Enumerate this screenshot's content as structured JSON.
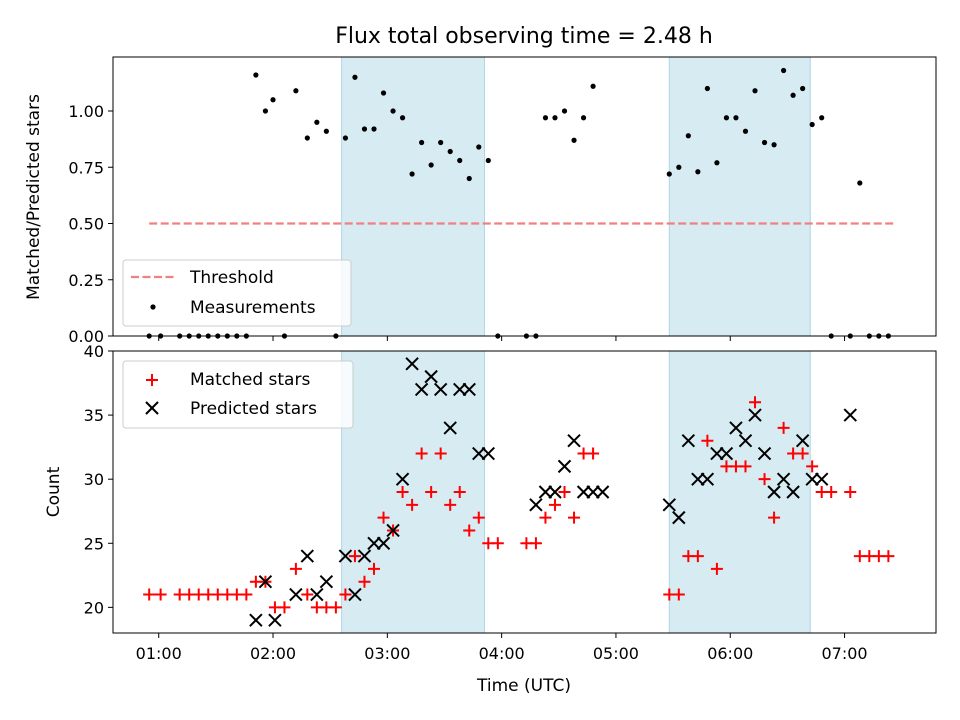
{
  "chart_data": [
    {
      "type": "scatter",
      "title": "Flux total observing time = 2.48 h",
      "ylabel": "Matched/Predicted stars",
      "xlabel": "",
      "xlim": [
        "00:36",
        "07:48"
      ],
      "ylim": [
        0,
        1.24
      ],
      "yticks": [
        0.0,
        0.25,
        0.5,
        0.75,
        1.0
      ],
      "ytick_labels": [
        "0.00",
        "0.25",
        "0.50",
        "0.75",
        "1.00"
      ],
      "grid": false,
      "legend_position": "lower-left",
      "shaded_intervals": [
        [
          "02:36",
          "03:51"
        ],
        [
          "05:28",
          "06:42"
        ]
      ],
      "threshold": {
        "name": "Threshold",
        "value": 0.5,
        "x_range": [
          "00:55",
          "07:27"
        ],
        "color": "#f28080"
      },
      "series": [
        {
          "name": "Measurements",
          "color": "#000000",
          "x": [
            "00:55",
            "01:01",
            "01:11",
            "01:16",
            "01:21",
            "01:26",
            "01:31",
            "01:36",
            "01:41",
            "01:46",
            "01:51",
            "01:56",
            "02:00",
            "02:06",
            "02:12",
            "02:18",
            "02:23",
            "02:28",
            "02:33",
            "02:38",
            "02:43",
            "02:48",
            "02:53",
            "02:58",
            "03:03",
            "03:08",
            "03:13",
            "03:18",
            "03:23",
            "03:28",
            "03:33",
            "03:38",
            "03:43",
            "03:48",
            "03:53",
            "03:58",
            "04:13",
            "04:18",
            "04:23",
            "04:28",
            "04:33",
            "04:38",
            "04:43",
            "04:48",
            "05:28",
            "05:33",
            "05:38",
            "05:43",
            "05:48",
            "05:53",
            "05:58",
            "06:03",
            "06:08",
            "06:13",
            "06:18",
            "06:23",
            "06:28",
            "06:33",
            "06:38",
            "06:43",
            "06:48",
            "06:53",
            "07:03",
            "07:08",
            "07:13",
            "07:18",
            "07:23"
          ],
          "y": [
            0,
            0,
            0,
            0,
            0,
            0,
            0,
            0,
            0,
            0,
            1.16,
            1.0,
            1.05,
            0,
            1.09,
            0.88,
            0.95,
            0.91,
            0,
            0.88,
            1.15,
            0.92,
            0.92,
            1.08,
            1.0,
            0.97,
            0.72,
            0.86,
            0.76,
            0.86,
            0.82,
            0.78,
            0.7,
            0.84,
            0.78,
            0,
            0,
            0,
            0.97,
            0.97,
            1.0,
            0.87,
            0.97,
            1.11,
            0.72,
            0.75,
            0.89,
            0.73,
            1.1,
            0.77,
            0.97,
            0.97,
            0.91,
            1.09,
            0.86,
            0.85,
            1.18,
            1.07,
            1.1,
            0.94,
            0.97,
            0,
            0,
            0.68,
            0,
            0,
            0
          ]
        }
      ]
    },
    {
      "type": "scatter",
      "title": "",
      "xlabel": "Time (UTC)",
      "ylabel": "Count",
      "xlim": [
        "00:36",
        "07:48"
      ],
      "ylim": [
        18,
        40
      ],
      "xticks": [
        "01:00",
        "02:00",
        "03:00",
        "04:00",
        "05:00",
        "06:00",
        "07:00"
      ],
      "yticks": [
        20,
        25,
        30,
        35,
        40
      ],
      "grid": false,
      "legend_position": "upper-left",
      "shaded_intervals": [
        [
          "02:36",
          "03:51"
        ],
        [
          "05:28",
          "06:42"
        ]
      ],
      "series": [
        {
          "name": "Matched stars",
          "marker": "plus",
          "color": "#ff0000",
          "x": [
            "00:55",
            "01:01",
            "01:11",
            "01:16",
            "01:21",
            "01:26",
            "01:31",
            "01:36",
            "01:41",
            "01:46",
            "01:51",
            "01:56",
            "02:01",
            "02:06",
            "02:12",
            "02:18",
            "02:23",
            "02:28",
            "02:33",
            "02:38",
            "02:43",
            "02:48",
            "02:53",
            "02:58",
            "03:03",
            "03:08",
            "03:13",
            "03:18",
            "03:23",
            "03:28",
            "03:33",
            "03:38",
            "03:43",
            "03:48",
            "03:53",
            "03:58",
            "04:13",
            "04:18",
            "04:23",
            "04:28",
            "04:33",
            "04:38",
            "04:43",
            "04:48",
            "05:28",
            "05:33",
            "05:38",
            "05:43",
            "05:48",
            "05:53",
            "05:58",
            "06:03",
            "06:08",
            "06:13",
            "06:18",
            "06:23",
            "06:28",
            "06:33",
            "06:38",
            "06:43",
            "06:48",
            "06:53",
            "07:03",
            "07:08",
            "07:13",
            "07:18",
            "07:23"
          ],
          "y": [
            21,
            21,
            21,
            21,
            21,
            21,
            21,
            21,
            21,
            21,
            22,
            22,
            20,
            20,
            23,
            21,
            20,
            20,
            20,
            21,
            24,
            22,
            23,
            27,
            26,
            29,
            28,
            32,
            29,
            32,
            28,
            29,
            26,
            27,
            25,
            25,
            25,
            25,
            27,
            28,
            29,
            27,
            32,
            32,
            21,
            21,
            24,
            24,
            33,
            23,
            31,
            31,
            31,
            36,
            30,
            27,
            34,
            32,
            32,
            31,
            29,
            29,
            29,
            24,
            24,
            24,
            24
          ]
        },
        {
          "name": "Predicted stars",
          "marker": "x",
          "color": "#000000",
          "x": [
            "01:51",
            "01:56",
            "02:01",
            "02:12",
            "02:18",
            "02:23",
            "02:28",
            "02:38",
            "02:43",
            "02:48",
            "02:53",
            "02:58",
            "03:03",
            "03:08",
            "03:13",
            "03:18",
            "03:23",
            "03:28",
            "03:33",
            "03:38",
            "03:43",
            "03:48",
            "03:53",
            "04:18",
            "04:23",
            "04:28",
            "04:33",
            "04:38",
            "04:43",
            "04:48",
            "04:53",
            "05:28",
            "05:33",
            "05:38",
            "05:43",
            "05:48",
            "05:53",
            "05:58",
            "06:03",
            "06:08",
            "06:13",
            "06:18",
            "06:23",
            "06:28",
            "06:33",
            "06:38",
            "06:43",
            "06:48",
            "07:03"
          ],
          "y": [
            19,
            22,
            19,
            21,
            24,
            21,
            22,
            24,
            21,
            24,
            25,
            25,
            26,
            30,
            39,
            37,
            38,
            37,
            34,
            37,
            37,
            32,
            32,
            28,
            29,
            29,
            31,
            33,
            29,
            29,
            29,
            28,
            27,
            33,
            30,
            30,
            32,
            32,
            34,
            33,
            35,
            32,
            29,
            30,
            29,
            33,
            30,
            30,
            35
          ]
        }
      ]
    }
  ]
}
